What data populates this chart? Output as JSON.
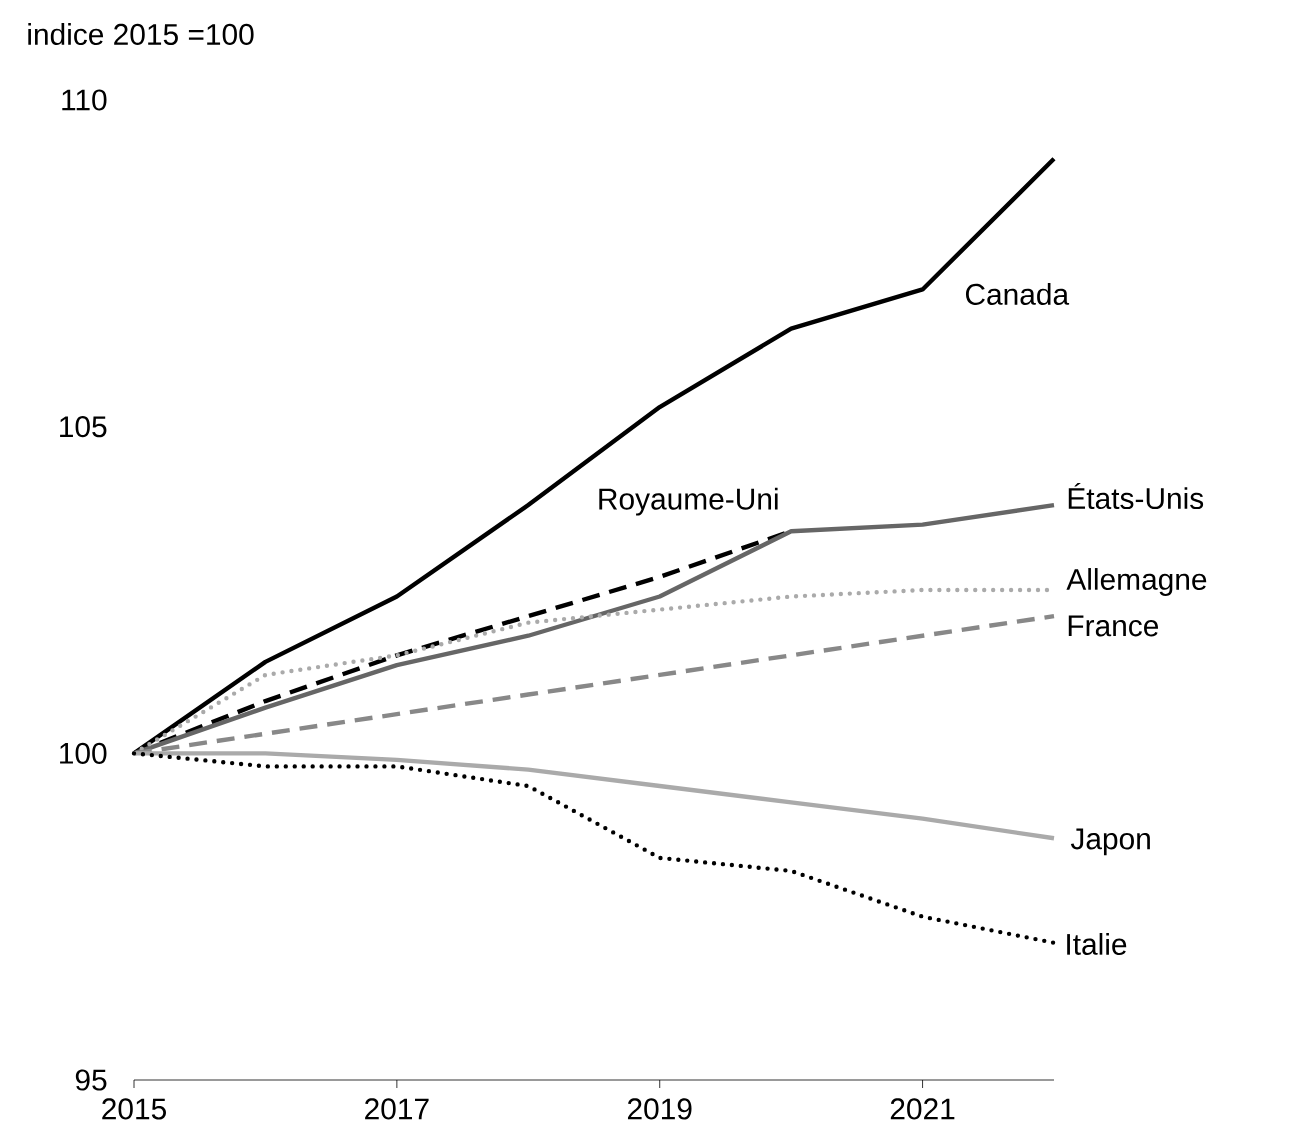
{
  "chart_data": {
    "type": "line",
    "ylabel": "indice 2015 =100",
    "x": [
      2015,
      2016,
      2017,
      2018,
      2019,
      2020,
      2021,
      2022
    ],
    "xlim": [
      2015,
      2022
    ],
    "xticks": [
      2015,
      2017,
      2019,
      2021
    ],
    "ylim": [
      95,
      110
    ],
    "yticks": [
      95,
      100,
      105,
      110
    ],
    "grid": false,
    "legend": false,
    "marker": "none",
    "series": [
      {
        "name": "Canada",
        "color": "#000000",
        "line_style": "solid",
        "values": [
          100,
          101.4,
          102.4,
          103.8,
          105.3,
          106.5,
          107.1,
          109.1
        ]
      },
      {
        "name": "Royaume-Uni",
        "color": "#000000",
        "line_style": "dashed",
        "values": [
          100,
          100.8,
          101.5,
          102.1,
          102.7,
          103.4,
          null,
          null
        ]
      },
      {
        "name": "États-Unis",
        "color": "#666666",
        "line_style": "solid",
        "values": [
          100,
          100.7,
          101.35,
          101.8,
          102.4,
          103.4,
          103.5,
          103.8
        ]
      },
      {
        "name": "Allemagne",
        "color": "#aaaaaa",
        "line_style": "dotted",
        "values": [
          100,
          101.2,
          101.5,
          102.0,
          102.2,
          102.4,
          102.5,
          102.5
        ]
      },
      {
        "name": "France",
        "color": "#888888",
        "line_style": "dashed",
        "values": [
          100,
          100.3,
          100.6,
          100.9,
          101.2,
          101.5,
          101.8,
          102.1
        ]
      },
      {
        "name": "Japon",
        "color": "#aaaaaa",
        "line_style": "solid",
        "values": [
          100,
          100.0,
          99.9,
          99.75,
          99.5,
          99.25,
          99.0,
          98.7
        ]
      },
      {
        "name": "Italie",
        "color": "#000000",
        "line_style": "dotted",
        "values": [
          100,
          99.8,
          99.8,
          99.5,
          98.4,
          98.2,
          97.5,
          97.1
        ]
      }
    ]
  }
}
